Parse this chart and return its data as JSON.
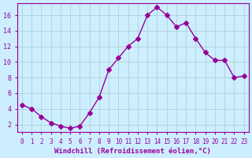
{
  "x": [
    0,
    1,
    2,
    3,
    4,
    5,
    6,
    7,
    8,
    9,
    10,
    11,
    12,
    13,
    14,
    15,
    16,
    17,
    18,
    19,
    20,
    21,
    22,
    23
  ],
  "y": [
    4.5,
    4.0,
    3.0,
    2.2,
    1.8,
    1.5,
    1.8,
    3.5,
    5.5,
    9.0,
    10.5,
    12.0,
    13.0,
    16.0,
    17.0,
    16.0,
    14.5,
    15.0,
    13.0,
    11.2,
    10.2,
    10.2,
    8.0,
    8.2
  ],
  "line_color": "#990099",
  "marker": "D",
  "marker_size": 3,
  "bg_color": "#cceeff",
  "grid_color": "#aacccc",
  "xlabel": "Windchill (Refroidissement éolien,°C)",
  "xlabel_color": "#990099",
  "tick_color": "#990099",
  "ylabel_ticks": [
    2,
    4,
    6,
    8,
    10,
    12,
    14,
    16
  ],
  "xlim": [
    -0.5,
    23.5
  ],
  "ylim": [
    1.0,
    17.5
  ]
}
